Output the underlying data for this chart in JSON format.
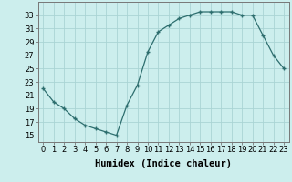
{
  "x": [
    0,
    1,
    2,
    3,
    4,
    5,
    6,
    7,
    8,
    9,
    10,
    11,
    12,
    13,
    14,
    15,
    16,
    17,
    18,
    19,
    20,
    21,
    22,
    23
  ],
  "y": [
    22,
    20,
    19,
    17.5,
    16.5,
    16,
    15.5,
    15,
    19.5,
    22.5,
    27.5,
    30.5,
    31.5,
    32.5,
    33,
    33.5,
    33.5,
    33.5,
    33.5,
    33,
    33,
    30,
    27,
    25
  ],
  "line_color": "#2d6e6e",
  "marker": "+",
  "marker_color": "#2d6e6e",
  "bg_color": "#cceeed",
  "grid_color": "#aad4d4",
  "xlabel": "Humidex (Indice chaleur)",
  "xlabel_fontsize": 7.5,
  "ytick_labels": [
    "15",
    "17",
    "19",
    "21",
    "23",
    "25",
    "27",
    "29",
    "31",
    "33"
  ],
  "ytick_vals": [
    15,
    17,
    19,
    21,
    23,
    25,
    27,
    29,
    31,
    33
  ],
  "xtick_vals": [
    0,
    1,
    2,
    3,
    4,
    5,
    6,
    7,
    8,
    9,
    10,
    11,
    12,
    13,
    14,
    15,
    16,
    17,
    18,
    19,
    20,
    21,
    22,
    23
  ],
  "xtick_labels": [
    "0",
    "1",
    "2",
    "3",
    "4",
    "5",
    "6",
    "7",
    "8",
    "9",
    "10",
    "11",
    "12",
    "13",
    "14",
    "15",
    "16",
    "17",
    "18",
    "19",
    "20",
    "21",
    "22",
    "23"
  ],
  "ylim": [
    14,
    35
  ],
  "xlim": [
    -0.5,
    23.5
  ],
  "tick_fontsize": 6,
  "markersize": 3.5,
  "linewidth": 0.9
}
